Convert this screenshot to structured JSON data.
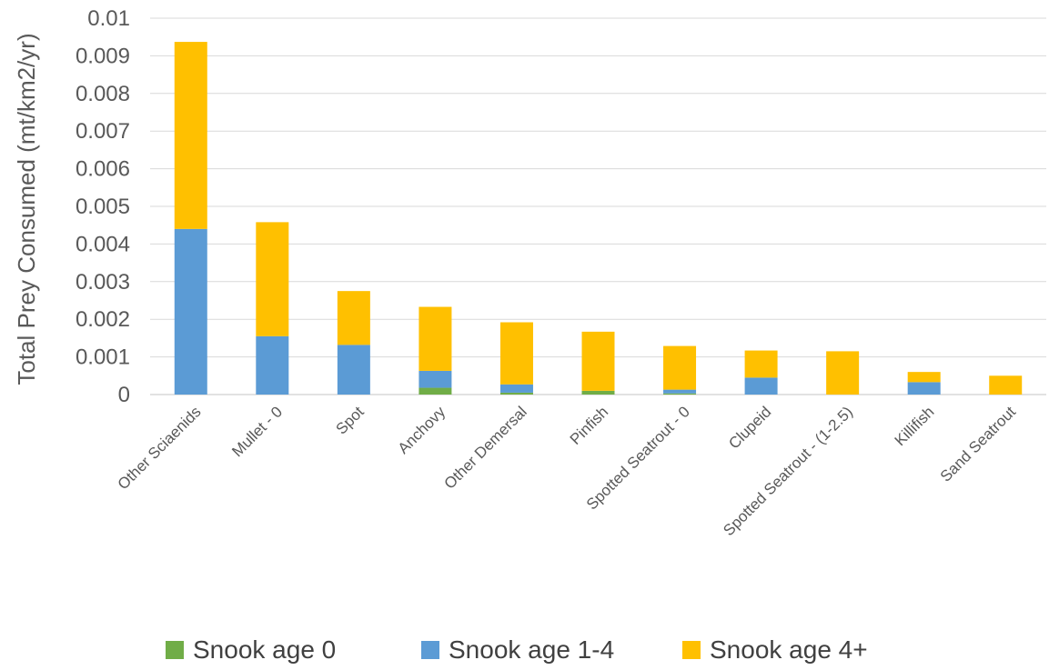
{
  "chart_data": {
    "type": "bar",
    "stacked": true,
    "title": "",
    "xlabel": "",
    "ylabel": "Total Prey Consumed  (mt/km2/yr)",
    "ylim": [
      0,
      0.01
    ],
    "yticks": [
      "0",
      "0.001",
      "0.002",
      "0.003",
      "0.004",
      "0.005",
      "0.006",
      "0.007",
      "0.008",
      "0.009",
      "0.01"
    ],
    "grid": true,
    "legend_position": "bottom",
    "categories": [
      "Other Sciaenids",
      "Mullet - 0",
      "Spot",
      "Anchovy",
      "Other Demersal",
      "Pinfish",
      "Spotted Seatrout - 0",
      "Clupeid",
      "Spotted Seatrout - (1-2.5)",
      "Killifish",
      "Sand Seatrout"
    ],
    "series": [
      {
        "name": "Snook age 0",
        "color": "#70ad47",
        "values": [
          0,
          0,
          0,
          0.00018,
          5e-05,
          0.0001,
          3e-05,
          0,
          0,
          0,
          0
        ]
      },
      {
        "name": "Snook age 1-4",
        "color": "#5b9bd5",
        "values": [
          0.0044,
          0.00155,
          0.00132,
          0.00045,
          0.00022,
          0,
          0.0001,
          0.00045,
          0,
          0.00033,
          0
        ]
      },
      {
        "name": "Snook age 4+",
        "color": "#ffc000",
        "values": [
          0.00497,
          0.00303,
          0.00143,
          0.0017,
          0.00165,
          0.00157,
          0.00116,
          0.00072,
          0.00115,
          0.00027,
          0.0005
        ]
      }
    ]
  }
}
